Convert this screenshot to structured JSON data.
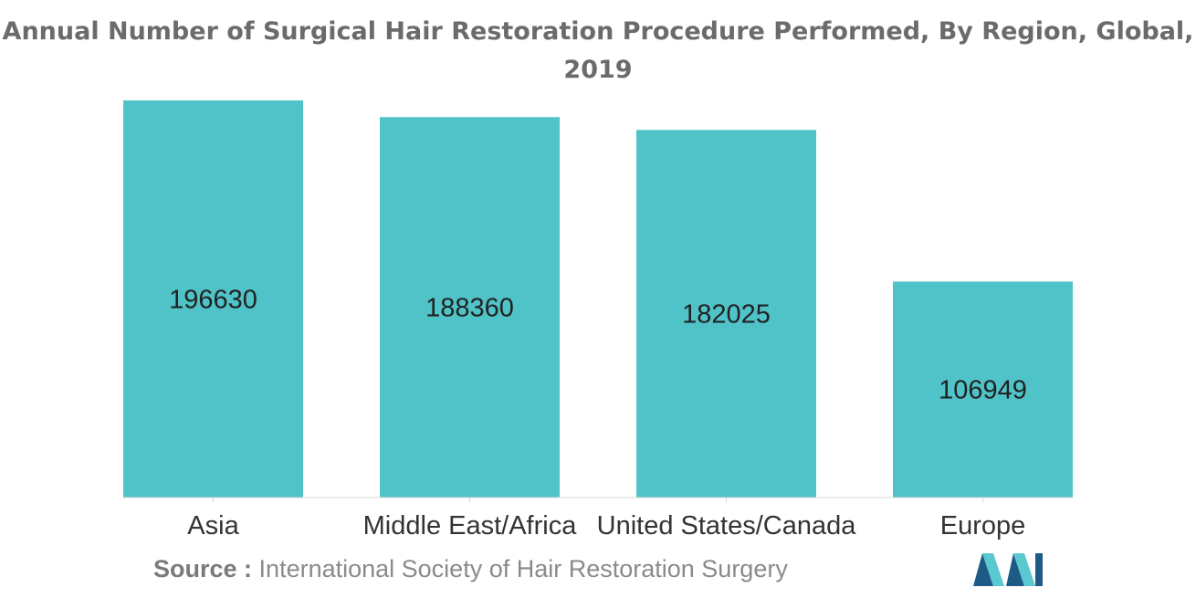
{
  "chart_data": {
    "type": "bar",
    "title": "Annual Number of Surgical Hair Restoration Procedure Performed, By Region, Global, 2019",
    "categories": [
      "Asia",
      "Middle East/Africa",
      "United States/Canada",
      "Europe"
    ],
    "values": [
      196630,
      188360,
      182025,
      106949
    ],
    "data_labels": [
      "196630",
      "188360",
      "182025",
      "106949"
    ],
    "xlabel": "",
    "ylabel": "",
    "ylim": [
      0,
      196630
    ],
    "grid": false,
    "legend": "none",
    "bar_color": "#4fc3c8"
  },
  "source": {
    "prefix": "Source :",
    "text": "International Society of Hair Restoration Surgery"
  },
  "colors": {
    "bar": "#4fc3c8",
    "title": "#6b6b6b",
    "logo_dark": "#1e5a86",
    "logo_light": "#5ac8d0"
  }
}
